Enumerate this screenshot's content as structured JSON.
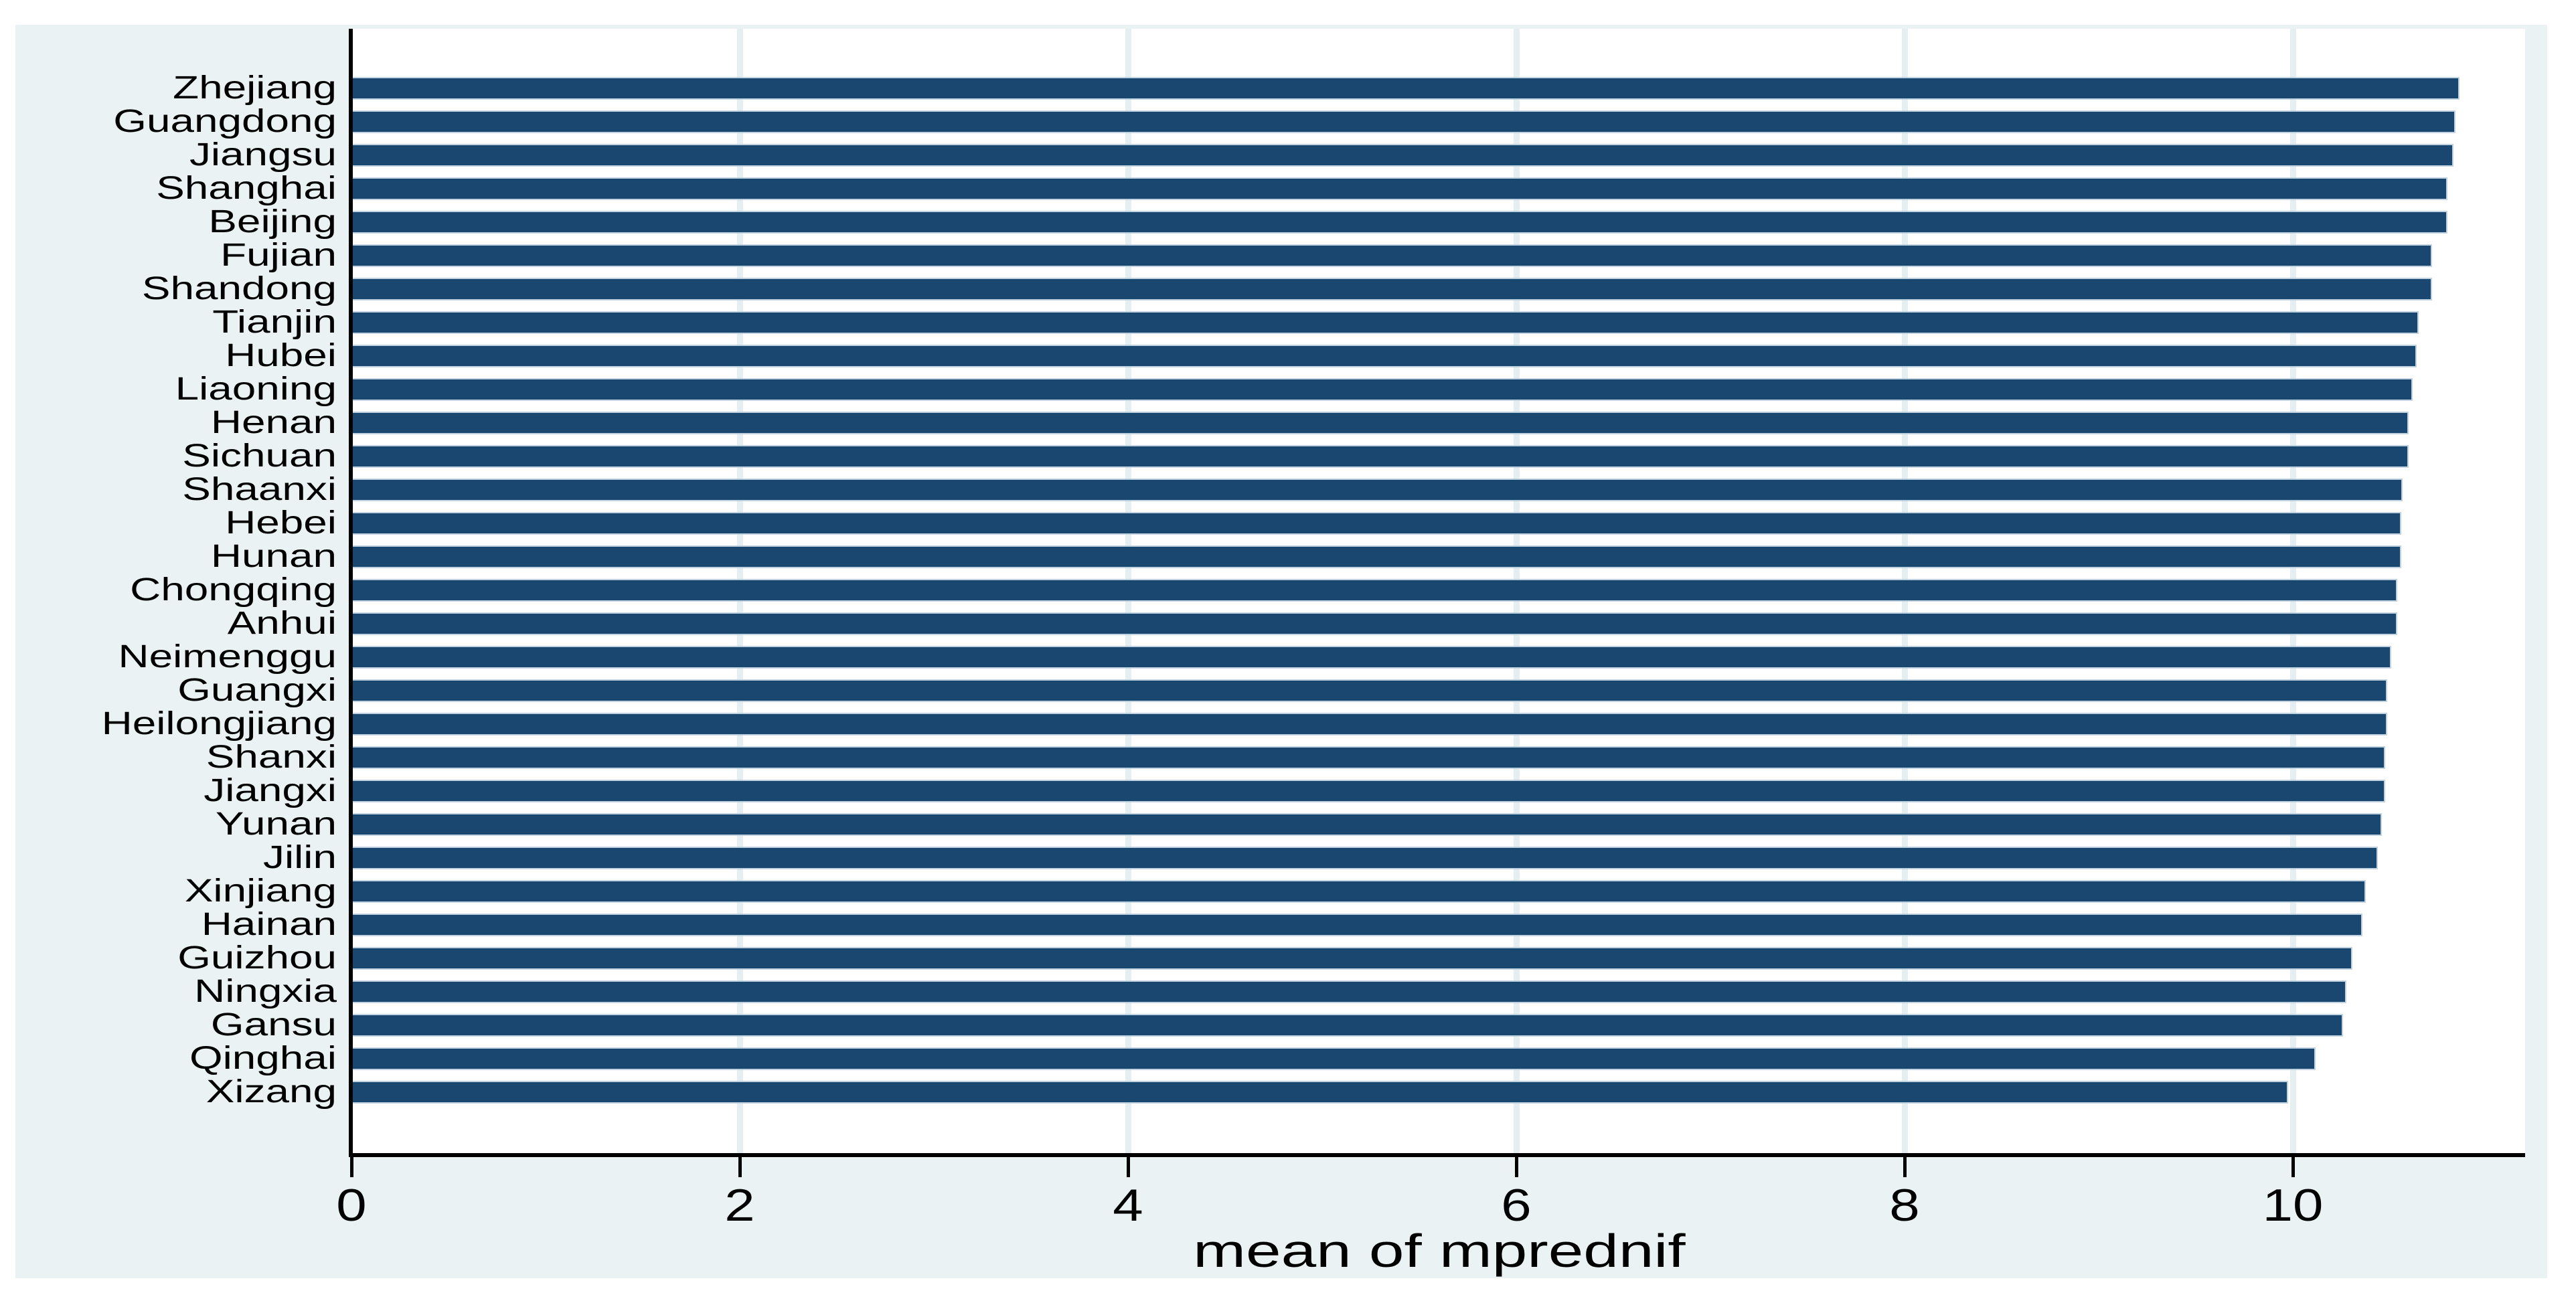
{
  "figure": {
    "background_color": "#ffffff",
    "canvas_color": "#eaf2f3",
    "plot_background": "#ffffff",
    "bar_color": "#1a476f",
    "bar_edge_color": "rgba(178,200,216,0.8)",
    "gridline_color": "#e5eef1",
    "axis_line_color": "#000000",
    "text_color": "#000000"
  },
  "chart_data": {
    "type": "bar",
    "orientation": "horizontal",
    "title": "",
    "xlabel": "mean of mprednif",
    "ylabel": "",
    "categories": [
      "Zhejiang",
      "Guangdong",
      "Jiangsu",
      "Shanghai",
      "Beijing",
      "Fujian",
      "Shandong",
      "Tianjin",
      "Hubei",
      "Liaoning",
      "Henan",
      "Sichuan",
      "Shaanxi",
      "Hebei",
      "Hunan",
      "Chongqing",
      "Anhui",
      "Neimenggu",
      "Guangxi",
      "Heilongjiang",
      "Shanxi",
      "Jiangxi",
      "Yunan",
      "Jilin",
      "Xinjiang",
      "Hainan",
      "Guizhou",
      "Ningxia",
      "Gansu",
      "Qinghai",
      "Xizang"
    ],
    "values": [
      10.85,
      10.83,
      10.82,
      10.79,
      10.79,
      10.71,
      10.71,
      10.64,
      10.63,
      10.61,
      10.59,
      10.59,
      10.56,
      10.55,
      10.55,
      10.53,
      10.53,
      10.5,
      10.48,
      10.48,
      10.47,
      10.47,
      10.45,
      10.43,
      10.37,
      10.35,
      10.3,
      10.27,
      10.25,
      10.11,
      9.97
    ],
    "xlim": [
      0,
      11.2
    ],
    "xticks": [
      0,
      2,
      4,
      6,
      8,
      10
    ],
    "grid": "vertical gridlines at x ticks",
    "legend": "none"
  }
}
